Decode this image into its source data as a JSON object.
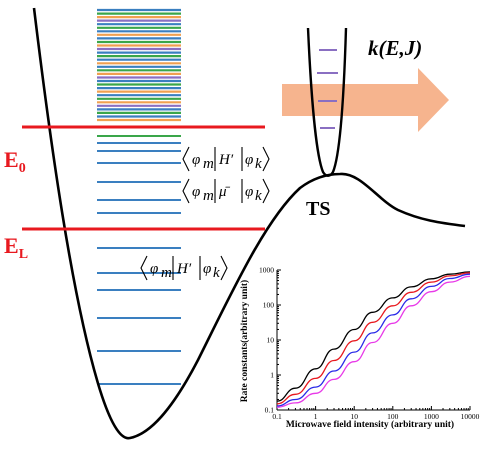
{
  "labels": {
    "e0": "E",
    "e0_sub": "0",
    "el": "E",
    "el_sub": "L",
    "rate": "k(E,J)",
    "ts": "TS"
  },
  "matrix_elements": [
    {
      "phi_m": "φ",
      "m": "m",
      "op": "H′",
      "phi_k": "φ",
      "k": "k"
    },
    {
      "phi_m": "φ",
      "m": "m",
      "op": "μ̄",
      "phi_k": "φ",
      "k": "k"
    },
    {
      "phi_m": "φ",
      "m": "m",
      "op": "H′",
      "phi_k": "φ",
      "k": "k"
    }
  ],
  "colors": {
    "threshold_lines": "#e8191f",
    "arrow": "#f4a77a",
    "level_blue": "#3a7fc0",
    "level_green": "#3aa64a",
    "level_orange": "#f0a050",
    "level_purple": "#8a6fc2",
    "inset_series": [
      "#000000",
      "#e8191f",
      "#2a2ae8",
      "#e83ae8"
    ]
  },
  "inset_chart": {
    "chart_data": {
      "type": "line",
      "xlabel": "Microwave field intensity (arbitrary unit)",
      "ylabel": "Rate constants(arbitrary unit)",
      "x_scale": "log",
      "y_scale": "log",
      "xlim": [
        0.1,
        10000
      ],
      "ylim": [
        0.1,
        1000
      ],
      "x_ticks": [
        "0.1",
        "1",
        "10",
        "100",
        "1000",
        "10000"
      ],
      "y_ticks": [
        "0.1",
        "1",
        "10",
        "100",
        "1000"
      ],
      "x": [
        0.1,
        0.3,
        1,
        3,
        10,
        30,
        100,
        300,
        1000,
        3000,
        10000
      ],
      "series": [
        {
          "color": "#000000",
          "values": [
            0.18,
            0.42,
            1.5,
            5.5,
            20,
            62,
            160,
            330,
            560,
            760,
            880
          ]
        },
        {
          "color": "#e8191f",
          "values": [
            0.15,
            0.28,
            0.8,
            2.6,
            9.5,
            32,
            95,
            230,
            450,
            680,
            830
          ]
        },
        {
          "color": "#2a2ae8",
          "values": [
            0.13,
            0.2,
            0.45,
            1.3,
            4.5,
            16,
            52,
            150,
            340,
            570,
            760
          ]
        },
        {
          "color": "#e83ae8",
          "values": [
            0.12,
            0.16,
            0.3,
            0.75,
            2.4,
            8.5,
            30,
            95,
            240,
            450,
            660
          ]
        }
      ],
      "grid": false,
      "legend": "none"
    }
  }
}
